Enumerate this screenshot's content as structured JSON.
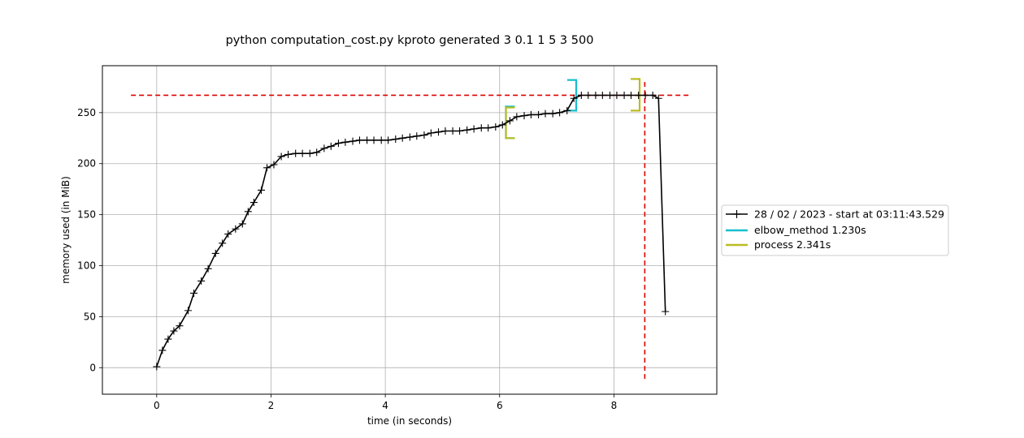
{
  "chart_data": {
    "type": "line",
    "title": "python computation_cost.py kproto generated 3 0.1 1 5 3 500",
    "xlabel": "time (in seconds)",
    "ylabel": "memory used (in MiB)",
    "xlim": [
      -0.95,
      9.8
    ],
    "ylim": [
      -26,
      296
    ],
    "grid": true,
    "legend_position": "right",
    "x_ticks": [
      0,
      2,
      4,
      6,
      8
    ],
    "y_ticks": [
      0,
      50,
      100,
      150,
      200,
      250
    ],
    "series": [
      {
        "name": "28 / 02 / 2023 - start at 03:11:43.529",
        "color": "#000000",
        "marker": "+",
        "x": [
          0.0,
          0.1,
          0.2,
          0.3,
          0.4,
          0.55,
          0.65,
          0.78,
          0.9,
          1.03,
          1.15,
          1.25,
          1.38,
          1.5,
          1.6,
          1.7,
          1.83,
          1.93,
          2.05,
          2.18,
          2.3,
          2.43,
          2.55,
          2.68,
          2.8,
          2.93,
          3.05,
          3.18,
          3.3,
          3.43,
          3.55,
          3.68,
          3.8,
          3.93,
          4.05,
          4.18,
          4.3,
          4.43,
          4.55,
          4.68,
          4.8,
          4.93,
          5.05,
          5.18,
          5.3,
          5.43,
          5.55,
          5.68,
          5.8,
          5.93,
          6.05,
          6.18,
          6.3,
          6.43,
          6.55,
          6.68,
          6.8,
          6.93,
          7.05,
          7.18,
          7.3,
          7.43,
          7.55,
          7.68,
          7.8,
          7.93,
          8.05,
          8.18,
          8.3,
          8.43,
          8.55,
          8.68,
          8.78,
          8.9
        ],
        "y": [
          1,
          17,
          28,
          36,
          41,
          56,
          73,
          85,
          97,
          112,
          122,
          131,
          136,
          141,
          153,
          162,
          174,
          196,
          199,
          207,
          209,
          210,
          210,
          210,
          211,
          215,
          217,
          220,
          221,
          222,
          223,
          223,
          223,
          223,
          223,
          224,
          225,
          226,
          227,
          228,
          230,
          231,
          232,
          232,
          232,
          233,
          234,
          235,
          235,
          236,
          238,
          242,
          246,
          247,
          248,
          248,
          249,
          249,
          250,
          252,
          264,
          267,
          267,
          267,
          267,
          267,
          267,
          267,
          267,
          267,
          267,
          267,
          264,
          55
        ]
      }
    ],
    "reference_lines": [
      {
        "orientation": "horizontal",
        "value": 267,
        "from": -0.45,
        "to": 9.35,
        "color": "#dd0000",
        "style": "dashed"
      },
      {
        "orientation": "vertical",
        "value": 8.54,
        "from": -11,
        "to": 280,
        "color": "#dd0000",
        "style": "dashed"
      }
    ],
    "brackets": [
      {
        "name": "elbow_method 1.230s",
        "color": "#17becf",
        "side": "start",
        "x": 6.11,
        "y_low": 225,
        "y_high": 256,
        "series_color_alt": "#2ca02c"
      },
      {
        "name": "elbow_method 1.230s",
        "color": "#17becf",
        "side": "end",
        "x": 7.34,
        "y_low": 252,
        "y_high": 282
      },
      {
        "name": "process 2.341s",
        "color": "#bcbd22",
        "side": "start",
        "x": 6.11,
        "y_low": 225,
        "y_high": 255
      },
      {
        "name": "process 2.341s",
        "color": "#bcbd22",
        "side": "end",
        "x": 8.45,
        "y_low": 252,
        "y_high": 283
      }
    ],
    "legend": [
      {
        "label": "28 / 02 / 2023 - start at 03:11:43.529",
        "color": "#000000",
        "marker": "+"
      },
      {
        "label": "elbow_method 1.230s",
        "color": "#17becf"
      },
      {
        "label": "process 2.341s",
        "color": "#bcbd22"
      }
    ]
  }
}
